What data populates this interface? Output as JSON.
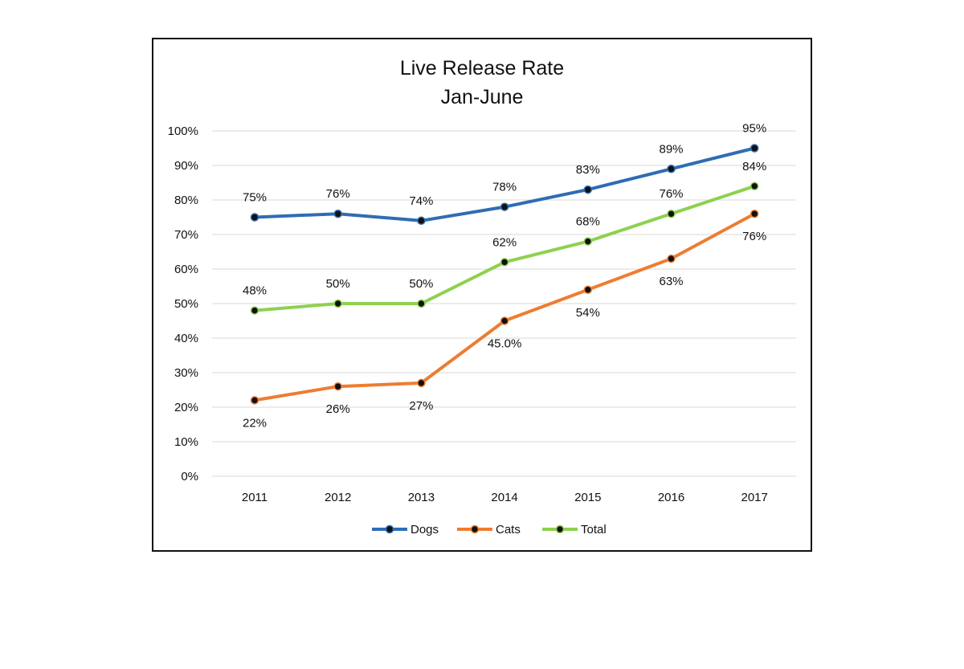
{
  "chart_data": {
    "type": "line",
    "title": [
      "Live Release Rate",
      "Jan-June"
    ],
    "xlabel": "",
    "ylabel": "",
    "categories": [
      "2011",
      "2012",
      "2013",
      "2014",
      "2015",
      "2016",
      "2017"
    ],
    "ylim": [
      0,
      100
    ],
    "yticks": [
      "0%",
      "10%",
      "20%",
      "30%",
      "40%",
      "50%",
      "60%",
      "70%",
      "80%",
      "90%",
      "100%"
    ],
    "grid": true,
    "legend_position": "bottom",
    "series": [
      {
        "name": "Dogs",
        "color": "#2E6DB4",
        "values": [
          75,
          76,
          74,
          78,
          83,
          89,
          95
        ],
        "labels": [
          "75%",
          "76%",
          "74%",
          "78%",
          "83%",
          "89%",
          "95%"
        ],
        "label_side": [
          "above",
          "above",
          "above",
          "above",
          "above",
          "above",
          "above"
        ]
      },
      {
        "name": "Cats",
        "color": "#ED7D31",
        "values": [
          22,
          26,
          27,
          45,
          54,
          63,
          76
        ],
        "labels": [
          "22%",
          "26%",
          "27%",
          "45.0%",
          "54%",
          "63%",
          "76%"
        ],
        "label_side": [
          "below",
          "below",
          "below",
          "below",
          "below",
          "below",
          "below"
        ]
      },
      {
        "name": "Total",
        "color": "#8DD14F",
        "values": [
          48,
          50,
          50,
          62,
          68,
          76,
          84
        ],
        "labels": [
          "48%",
          "50%",
          "50%",
          "62%",
          "68%",
          "76%",
          "84%"
        ],
        "label_side": [
          "above",
          "above",
          "above",
          "above",
          "above",
          "above",
          "above"
        ]
      }
    ],
    "marker_color": "#111111"
  }
}
